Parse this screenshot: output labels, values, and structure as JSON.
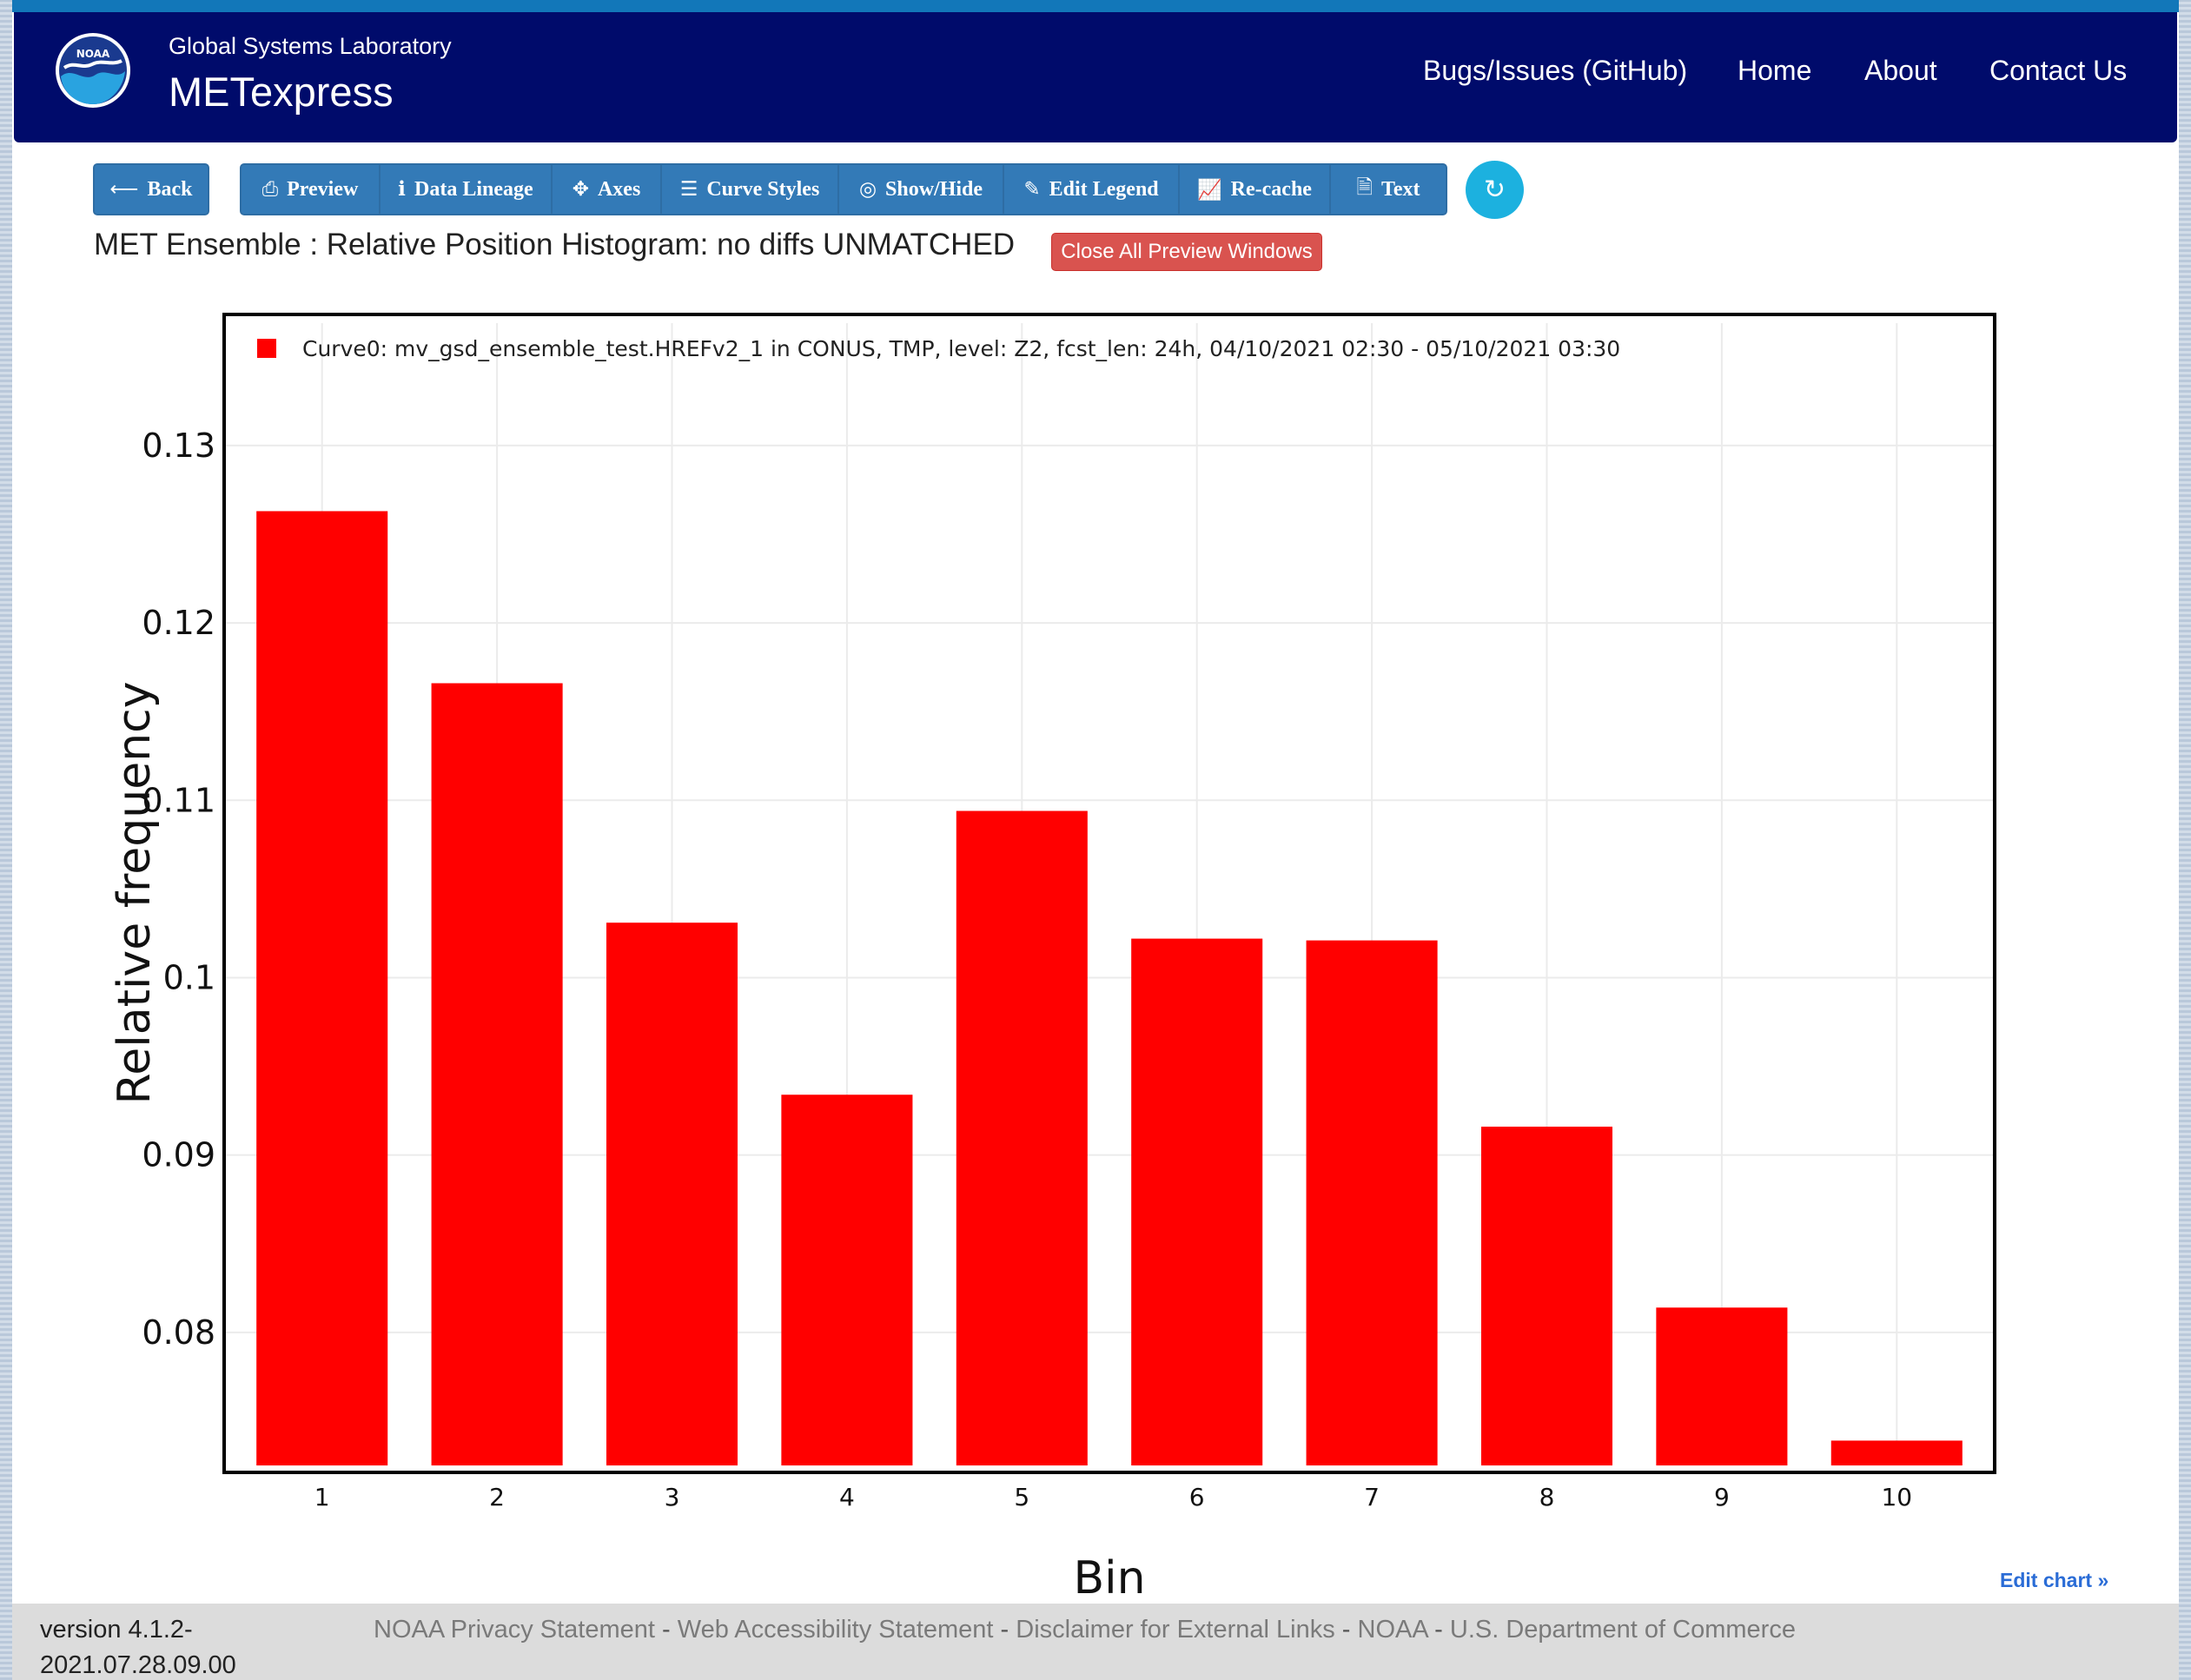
{
  "header": {
    "org_name": "Global Systems Laboratory",
    "app_name": "METexpress",
    "logo_text": "NOAA",
    "nav": [
      "Bugs/Issues (GitHub)",
      "Home",
      "About",
      "Contact Us"
    ]
  },
  "toolbar": {
    "back": {
      "label": "Back",
      "icon": "arrow-left-icon"
    },
    "buttons": [
      {
        "label": "Preview",
        "icon": "print-icon"
      },
      {
        "label": "Data Lineage",
        "icon": "info-icon"
      },
      {
        "label": "Axes",
        "icon": "move-arrows-icon"
      },
      {
        "label": "Curve Styles",
        "icon": "list-icon"
      },
      {
        "label": "Show/Hide",
        "icon": "eye-slash-icon"
      },
      {
        "label": "Edit Legend",
        "icon": "pencil-icon"
      },
      {
        "label": "Re-cache",
        "icon": "line-chart-icon"
      },
      {
        "label": "Text",
        "icon": "document-icon"
      }
    ],
    "refresh_icon": "refresh-icon"
  },
  "plot_title": "MET Ensemble : Relative Position Histogram: no diffs UNMATCHED",
  "close_previews_label": "Close All Preview Windows",
  "chart_data": {
    "type": "bar",
    "categories": [
      "1",
      "2",
      "3",
      "4",
      "5",
      "6",
      "7",
      "8",
      "9",
      "10"
    ],
    "series": [
      {
        "name": "Curve0: mv_gsd_ensemble_test.HREFv2_1 in CONUS, TMP, level: Z2, fcst_len: 24h, 04/10/2021 02:30 - 05/10/2021 03:30",
        "color": "#ff0000",
        "values": [
          0.1263,
          0.1166,
          0.1031,
          0.0934,
          0.1094,
          0.1022,
          0.1021,
          0.0916,
          0.0814,
          0.0739
        ]
      }
    ],
    "xlabel": "Bin",
    "ylabel": "Relative frequency",
    "ylim": [
      0.0725,
      0.1369
    ],
    "yticks": [
      0.08,
      0.09,
      0.1,
      0.11,
      0.12,
      0.13
    ],
    "ytick_labels": [
      "0.08",
      "0.09",
      "0.1",
      "0.11",
      "0.12",
      "0.13"
    ],
    "grid": true,
    "legend_position": "top-left"
  },
  "edit_chart_label": "Edit chart »",
  "footer": {
    "version": "version 4.1.2-2021.07.28.09.00",
    "links": [
      "NOAA Privacy Statement",
      "Web Accessibility Statement",
      "Disclaimer for External Links",
      "NOAA",
      "U.S. Department of Commerce"
    ]
  }
}
